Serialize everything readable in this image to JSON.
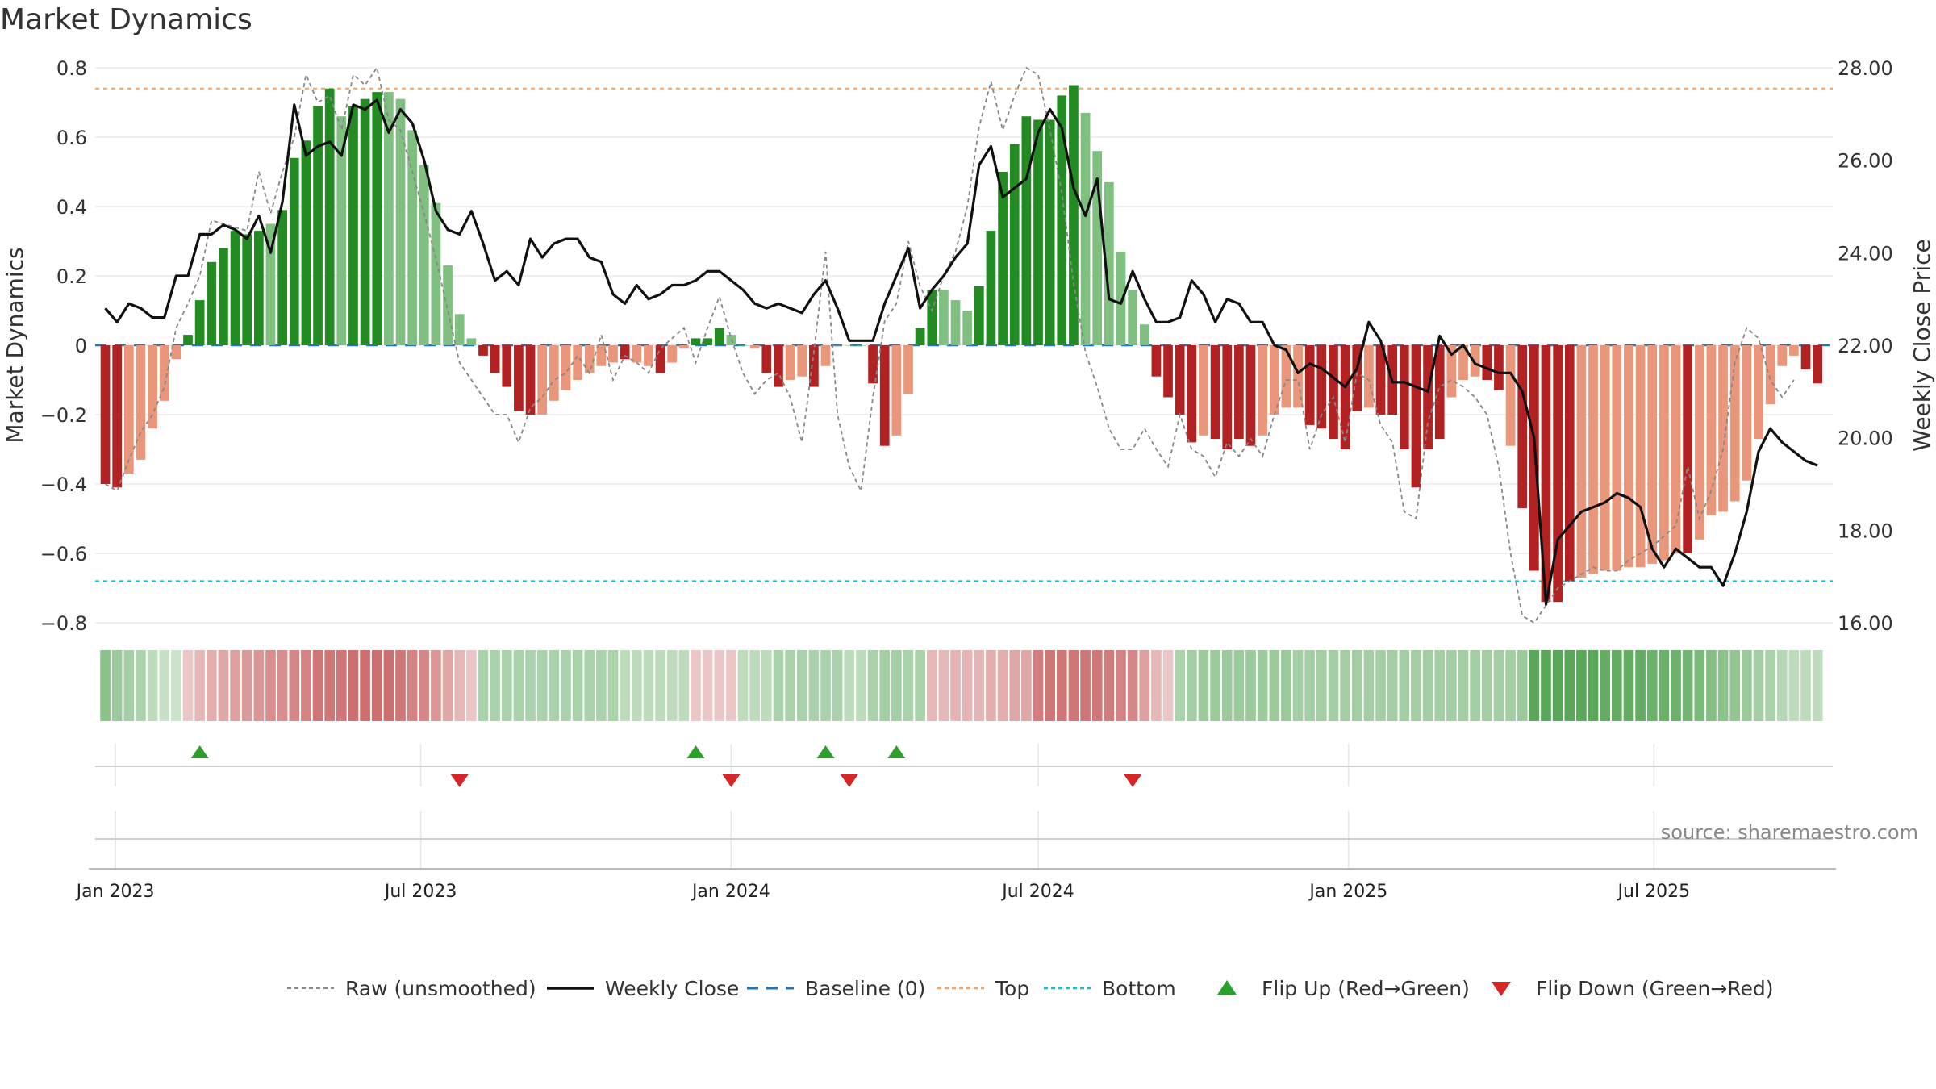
{
  "page": {
    "title": "Market Dynamics",
    "source": "source: sharemaestro.com"
  },
  "legend": {
    "items": [
      {
        "label": "Raw (unsmoothed)",
        "style": "dashed-gray"
      },
      {
        "label": "Weekly Close",
        "style": "solid-black"
      },
      {
        "label": "Baseline (0)",
        "style": "dashed-blue"
      },
      {
        "label": "Top",
        "style": "dotted-orange"
      },
      {
        "label": "Bottom",
        "style": "dotted-cyan"
      },
      {
        "label": "Flip Up (Red→Green)",
        "style": "triangle-up-green"
      },
      {
        "label": "Flip Down (Green→Red)",
        "style": "triangle-down-red"
      }
    ]
  },
  "colors": {
    "green_strong": "#228B22",
    "green_light": "#7FBF7F",
    "red_strong": "#B22222",
    "red_light": "#E9967A",
    "close_line": "#111111",
    "raw_line": "#888888",
    "baseline": "#1F77B4",
    "top": "#F4A460",
    "bottom": "#17BECF",
    "flip_up": "#2CA02C",
    "flip_down": "#D62728"
  },
  "chart_data": {
    "type": "bar",
    "x_start": "2022-12-26",
    "x_interval": "1 week",
    "xlim": [
      "2022-12-20",
      "2025-10-15"
    ],
    "x_ticks": [
      {
        "date": "2023-01-01",
        "label": "Jan 2023"
      },
      {
        "date": "2023-07-01",
        "label": "Jul 2023"
      },
      {
        "date": "2024-01-01",
        "label": "Jan 2024"
      },
      {
        "date": "2024-07-01",
        "label": "Jul 2024"
      },
      {
        "date": "2025-01-01",
        "label": "Jan 2025"
      },
      {
        "date": "2025-07-01",
        "label": "Jul 2025"
      }
    ],
    "left_axis": {
      "label": "Market Dynamics",
      "ylim": [
        -0.8,
        0.8
      ],
      "ticks": [
        "0.8",
        "0.6",
        "0.4",
        "0.2",
        "0",
        "−0.2",
        "−0.4",
        "−0.6",
        "−0.8"
      ]
    },
    "right_axis": {
      "label": "Weekly Close Price",
      "ylim": [
        16,
        28
      ],
      "ticks": [
        "28.00",
        "26.00",
        "24.00",
        "22.00",
        "20.00",
        "18.00",
        "16.00"
      ]
    },
    "top_line": 0.74,
    "bottom_line": -0.68,
    "baseline": 0,
    "dynamics": [
      -0.4,
      -0.41,
      -0.37,
      -0.33,
      -0.24,
      -0.16,
      -0.04,
      0.03,
      0.13,
      0.24,
      0.28,
      0.33,
      0.32,
      0.33,
      0.35,
      0.39,
      0.54,
      0.59,
      0.69,
      0.74,
      0.66,
      0.69,
      0.71,
      0.73,
      0.73,
      0.71,
      0.62,
      0.52,
      0.41,
      0.23,
      0.09,
      0.02,
      -0.03,
      -0.08,
      -0.12,
      -0.19,
      -0.2,
      -0.2,
      -0.16,
      -0.13,
      -0.1,
      -0.08,
      -0.06,
      -0.05,
      -0.04,
      -0.05,
      -0.06,
      -0.08,
      -0.05,
      -0.01,
      0.02,
      0.02,
      0.05,
      0.03,
      0.0,
      -0.01,
      -0.08,
      -0.12,
      -0.1,
      -0.09,
      -0.12,
      -0.06,
      0.0,
      0.0,
      0.0,
      -0.11,
      -0.29,
      -0.26,
      -0.14,
      0.05,
      0.16,
      0.16,
      0.13,
      0.1,
      0.17,
      0.33,
      0.5,
      0.58,
      0.66,
      0.65,
      0.65,
      0.72,
      0.75,
      0.67,
      0.56,
      0.47,
      0.27,
      0.16,
      0.06,
      -0.09,
      -0.15,
      -0.2,
      -0.28,
      -0.26,
      -0.27,
      -0.3,
      -0.27,
      -0.29,
      -0.26,
      -0.2,
      -0.18,
      -0.18,
      -0.23,
      -0.24,
      -0.27,
      -0.3,
      -0.19,
      -0.18,
      -0.2,
      -0.2,
      -0.3,
      -0.41,
      -0.3,
      -0.27,
      -0.15,
      -0.1,
      -0.09,
      -0.1,
      -0.13,
      -0.29,
      -0.47,
      -0.65,
      -0.74,
      -0.74,
      -0.68,
      -0.67,
      -0.66,
      -0.65,
      -0.65,
      -0.64,
      -0.64,
      -0.63,
      -0.62,
      -0.6,
      -0.6,
      -0.56,
      -0.49,
      -0.48,
      -0.45,
      -0.39,
      -0.27,
      -0.17,
      -0.06,
      -0.03,
      -0.07,
      -0.11
    ],
    "dynamics_strength": [
      1,
      1,
      0,
      0,
      0,
      0,
      0,
      1,
      1,
      1,
      1,
      1,
      1,
      1,
      0,
      1,
      1,
      1,
      1,
      1,
      0,
      1,
      1,
      1,
      0,
      0,
      0,
      0,
      0,
      0,
      0,
      0,
      1,
      1,
      1,
      1,
      1,
      0,
      0,
      0,
      0,
      0,
      0,
      0,
      1,
      0,
      0,
      1,
      0,
      0,
      1,
      1,
      1,
      0,
      0,
      0,
      1,
      1,
      0,
      0,
      1,
      0,
      0,
      0,
      0,
      1,
      1,
      0,
      0,
      1,
      1,
      0,
      0,
      0,
      1,
      1,
      1,
      1,
      1,
      1,
      1,
      1,
      1,
      0,
      0,
      0,
      0,
      0,
      0,
      1,
      1,
      1,
      1,
      0,
      1,
      1,
      1,
      1,
      0,
      0,
      0,
      0,
      1,
      1,
      1,
      1,
      1,
      0,
      1,
      1,
      1,
      1,
      1,
      1,
      0,
      0,
      0,
      1,
      1,
      0,
      1,
      1,
      1,
      1,
      1,
      0,
      0,
      0,
      0,
      0,
      0,
      0,
      0,
      0,
      1,
      0,
      0,
      0,
      0,
      0,
      0,
      0,
      0,
      0,
      1,
      1
    ],
    "raw": [
      -0.4,
      -0.42,
      -0.33,
      -0.25,
      -0.2,
      -0.12,
      0.05,
      0.12,
      0.2,
      0.36,
      0.35,
      0.34,
      0.33,
      0.5,
      0.38,
      0.5,
      0.6,
      0.78,
      0.7,
      0.72,
      0.62,
      0.78,
      0.75,
      0.8,
      0.65,
      0.62,
      0.5,
      0.38,
      0.25,
      0.1,
      -0.05,
      -0.1,
      -0.15,
      -0.2,
      -0.2,
      -0.28,
      -0.18,
      -0.15,
      -0.1,
      -0.08,
      -0.03,
      -0.08,
      0.03,
      -0.1,
      -0.03,
      -0.05,
      -0.08,
      -0.01,
      0.02,
      0.05,
      -0.05,
      0.05,
      0.14,
      0.02,
      -0.08,
      -0.14,
      -0.1,
      -0.08,
      -0.15,
      -0.28,
      -0.02,
      0.27,
      -0.2,
      -0.35,
      -0.42,
      -0.15,
      0.07,
      0.12,
      0.3,
      0.17,
      0.1,
      0.2,
      0.27,
      0.4,
      0.63,
      0.76,
      0.62,
      0.72,
      0.8,
      0.78,
      0.62,
      0.44,
      0.18,
      -0.02,
      -0.12,
      -0.24,
      -0.3,
      -0.3,
      -0.24,
      -0.3,
      -0.35,
      -0.2,
      -0.3,
      -0.32,
      -0.38,
      -0.28,
      -0.32,
      -0.27,
      -0.32,
      -0.2,
      -0.1,
      -0.1,
      -0.3,
      -0.2,
      -0.15,
      -0.28,
      -0.08,
      -0.1,
      -0.23,
      -0.28,
      -0.48,
      -0.5,
      -0.22,
      -0.12,
      -0.1,
      -0.12,
      -0.15,
      -0.2,
      -0.35,
      -0.6,
      -0.78,
      -0.8,
      -0.75,
      -0.7,
      -0.68,
      -0.66,
      -0.64,
      -0.65,
      -0.65,
      -0.62,
      -0.6,
      -0.58,
      -0.55,
      -0.52,
      -0.35,
      -0.5,
      -0.42,
      -0.3,
      -0.05,
      0.05,
      0.02,
      -0.1,
      -0.15,
      -0.1
    ],
    "close": [
      22.8,
      22.5,
      22.9,
      22.8,
      22.6,
      22.6,
      23.5,
      23.5,
      24.4,
      24.4,
      24.6,
      24.5,
      24.3,
      24.8,
      24.0,
      25.1,
      27.2,
      26.1,
      26.3,
      26.4,
      26.1,
      27.2,
      27.1,
      27.3,
      26.6,
      27.1,
      26.8,
      26.0,
      24.9,
      24.5,
      24.4,
      24.9,
      24.2,
      23.4,
      23.6,
      23.3,
      24.3,
      23.9,
      24.2,
      24.3,
      24.3,
      23.9,
      23.8,
      23.1,
      22.9,
      23.3,
      23.0,
      23.1,
      23.3,
      23.3,
      23.4,
      23.6,
      23.6,
      23.4,
      23.2,
      22.9,
      22.8,
      22.9,
      22.8,
      22.7,
      23.1,
      23.4,
      22.8,
      22.1,
      22.1,
      22.1,
      22.9,
      23.5,
      24.1,
      22.8,
      23.2,
      23.5,
      23.9,
      24.2,
      25.9,
      26.3,
      25.2,
      25.4,
      25.6,
      26.6,
      27.1,
      26.7,
      25.4,
      24.8,
      25.6,
      23.0,
      22.9,
      23.6,
      23.0,
      22.5,
      22.5,
      22.6,
      23.4,
      23.1,
      22.5,
      23.0,
      22.9,
      22.5,
      22.5,
      22.0,
      21.9,
      21.4,
      21.6,
      21.5,
      21.3,
      21.1,
      21.5,
      22.5,
      22.1,
      21.2,
      21.2,
      21.1,
      21.0,
      22.2,
      21.8,
      22.0,
      21.6,
      21.5,
      21.4,
      21.4,
      21.0,
      20.0,
      16.4,
      17.8,
      18.1,
      18.4,
      18.5,
      18.6,
      18.8,
      18.7,
      18.5,
      17.6,
      17.2,
      17.6,
      17.4,
      17.2,
      17.2,
      16.8,
      17.5,
      18.4,
      19.7,
      20.2,
      19.9,
      19.7,
      19.5,
      19.4
    ],
    "flips": [
      {
        "date": "2023-02-20",
        "direction": "up"
      },
      {
        "date": "2023-07-24",
        "direction": "down"
      },
      {
        "date": "2023-12-11",
        "direction": "up"
      },
      {
        "date": "2024-01-01",
        "direction": "down"
      },
      {
        "date": "2024-02-26",
        "direction": "up"
      },
      {
        "date": "2024-03-11",
        "direction": "down"
      },
      {
        "date": "2024-04-08",
        "direction": "up"
      },
      {
        "date": "2024-08-26",
        "direction": "down"
      }
    ],
    "regime_band": [
      0.5,
      0.4,
      0.35,
      0.3,
      0.2,
      0.15,
      0.1,
      -0.2,
      -0.3,
      -0.4,
      -0.45,
      -0.5,
      -0.55,
      -0.6,
      -0.65,
      -0.65,
      -0.7,
      -0.75,
      -0.85,
      -0.85,
      -0.85,
      -0.9,
      -0.9,
      -0.9,
      -0.9,
      -0.85,
      -0.75,
      -0.7,
      -0.6,
      -0.45,
      -0.3,
      -0.2,
      0.3,
      0.3,
      0.3,
      0.3,
      0.3,
      0.3,
      0.3,
      0.3,
      0.3,
      0.3,
      0.3,
      0.3,
      0.2,
      0.2,
      0.2,
      0.2,
      0.2,
      0.2,
      -0.2,
      -0.2,
      -0.2,
      -0.2,
      0.2,
      0.2,
      0.2,
      0.3,
      0.3,
      0.3,
      0.3,
      0.3,
      0.3,
      0.2,
      0.2,
      0.3,
      0.35,
      0.35,
      0.3,
      0.3,
      -0.3,
      -0.3,
      -0.35,
      -0.35,
      -0.35,
      -0.4,
      -0.4,
      -0.45,
      -0.45,
      -0.8,
      -0.85,
      -0.85,
      -0.85,
      -0.85,
      -0.85,
      -0.8,
      -0.75,
      -0.7,
      -0.5,
      -0.3,
      -0.2,
      0.3,
      0.35,
      0.4,
      0.4,
      0.4,
      0.4,
      0.4,
      0.4,
      0.4,
      0.4,
      0.35,
      0.35,
      0.35,
      0.35,
      0.35,
      0.35,
      0.35,
      0.35,
      0.35,
      0.35,
      0.35,
      0.35,
      0.35,
      0.35,
      0.35,
      0.35,
      0.35,
      0.35,
      0.35,
      0.4,
      0.8,
      0.8,
      0.8,
      0.8,
      0.8,
      0.8,
      0.75,
      0.75,
      0.75,
      0.75,
      0.7,
      0.7,
      0.7,
      0.65,
      0.6,
      0.55,
      0.5,
      0.45,
      0.4,
      0.35,
      0.3,
      0.25,
      0.2,
      0.2,
      0.2
    ]
  }
}
